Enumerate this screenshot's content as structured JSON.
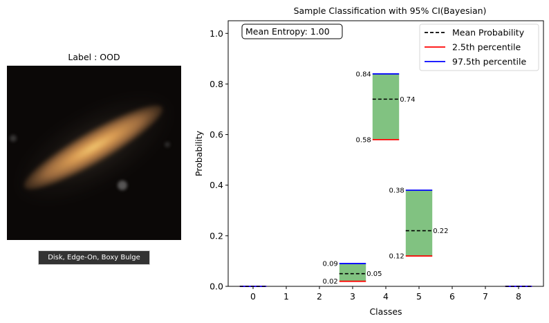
{
  "image_panel": {
    "title": "Label : OOD",
    "caption": "Disk, Edge-On, Boxy Bulge"
  },
  "chart_data": {
    "type": "bar",
    "title": "Sample Classification with 95% CI(Bayesian)",
    "xlabel": "Classes",
    "ylabel": "Probability",
    "categories": [
      "0",
      "1",
      "2",
      "3",
      "4",
      "5",
      "6",
      "7",
      "8"
    ],
    "xlim": [
      -0.75,
      8.75
    ],
    "ylim": [
      0,
      1.05
    ],
    "yticks": [
      "0.0",
      "0.2",
      "0.4",
      "0.6",
      "0.8",
      "1.0"
    ],
    "annotation": "Mean Entropy: 1.00",
    "legend": {
      "placement": "top-right",
      "entries": [
        {
          "label": "Mean Probability",
          "color": "#000000",
          "style": "dashed"
        },
        {
          "label": "2.5th percentile",
          "color": "#ff0000",
          "style": "solid"
        },
        {
          "label": "97.5th percentile",
          "color": "#0000ff",
          "style": "solid"
        }
      ]
    },
    "series": [
      {
        "category": "0",
        "mean": 0.0,
        "p2_5": 0.0,
        "p97_5": 0.0
      },
      {
        "category": "3",
        "mean": 0.05,
        "p2_5": 0.02,
        "p97_5": 0.09,
        "mean_label": "0.05",
        "p2_5_label": "0.02",
        "p97_5_label": "0.09"
      },
      {
        "category": "4",
        "mean": 0.74,
        "p2_5": 0.58,
        "p97_5": 0.84,
        "mean_label": "0.74",
        "p2_5_label": "0.58",
        "p97_5_label": "0.84"
      },
      {
        "category": "5",
        "mean": 0.22,
        "p2_5": 0.12,
        "p97_5": 0.38,
        "mean_label": "0.22",
        "p2_5_label": "0.12",
        "p97_5_label": "0.38"
      },
      {
        "category": "8",
        "mean": 0.0,
        "p2_5": 0.0,
        "p97_5": 0.0
      }
    ],
    "colors": {
      "interval_fill": "#81c281",
      "mean": "#000000",
      "lower": "#ff0000",
      "upper": "#0000ff"
    }
  }
}
